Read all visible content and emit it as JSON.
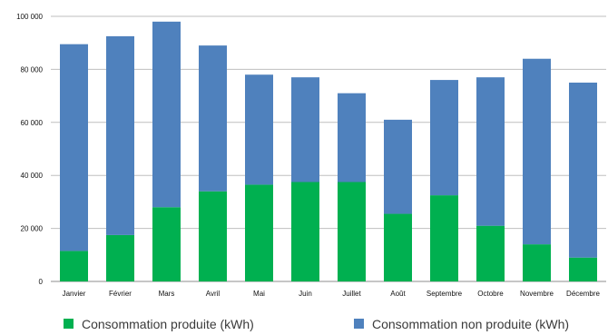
{
  "chart_data": {
    "type": "bar",
    "stacked": true,
    "categories": [
      "Janvier",
      "Février",
      "Mars",
      "Avril",
      "Mai",
      "Juin",
      "Juillet",
      "Août",
      "Septembre",
      "Octobre",
      "Novembre",
      "Décembre"
    ],
    "series": [
      {
        "name": "Consommation produite (kWh)",
        "color": "#00b050",
        "values": [
          11500,
          17500,
          28000,
          34000,
          36500,
          37500,
          37500,
          25500,
          32500,
          21000,
          14000,
          9000
        ]
      },
      {
        "name": "Consommation non produite (kWh)",
        "color": "#4f81bd",
        "values": [
          78000,
          75000,
          70000,
          55000,
          41500,
          39500,
          33500,
          35500,
          43500,
          56000,
          70000,
          66000
        ]
      }
    ],
    "ylim": [
      0,
      100000
    ],
    "yticks": [
      0,
      20000,
      40000,
      60000,
      80000,
      100000
    ],
    "ytick_labels": [
      "0",
      "20 000",
      "40 000",
      "60 000",
      "80 000",
      "100 000"
    ],
    "grid": true,
    "legend_position": "bottom"
  }
}
